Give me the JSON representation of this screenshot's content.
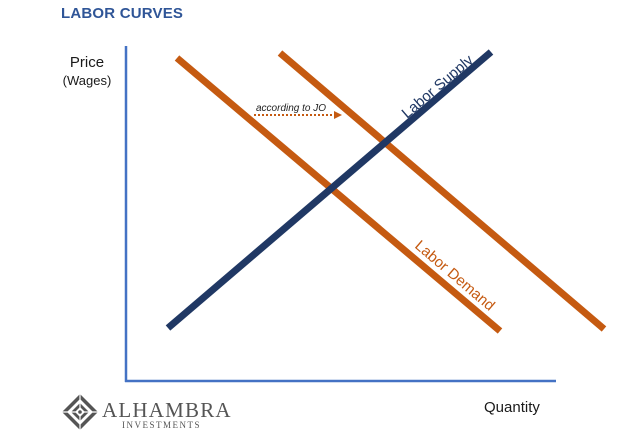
{
  "header": {
    "title": "LABOR CURVES"
  },
  "axes": {
    "y_label": "Price",
    "y_sublabel": "(Wages)",
    "x_label": "Quantity"
  },
  "curves": {
    "supply_label": "Labor Supply",
    "demand_label": "Labor Demand",
    "shift_annotation": "according to JO"
  },
  "colors": {
    "supply": "#203864",
    "demand": "#c55a11",
    "axis": "#4472c4",
    "title": "#2f5597"
  },
  "logo": {
    "name": "ALHAMBRA",
    "tagline": "INVESTMENTS"
  }
}
